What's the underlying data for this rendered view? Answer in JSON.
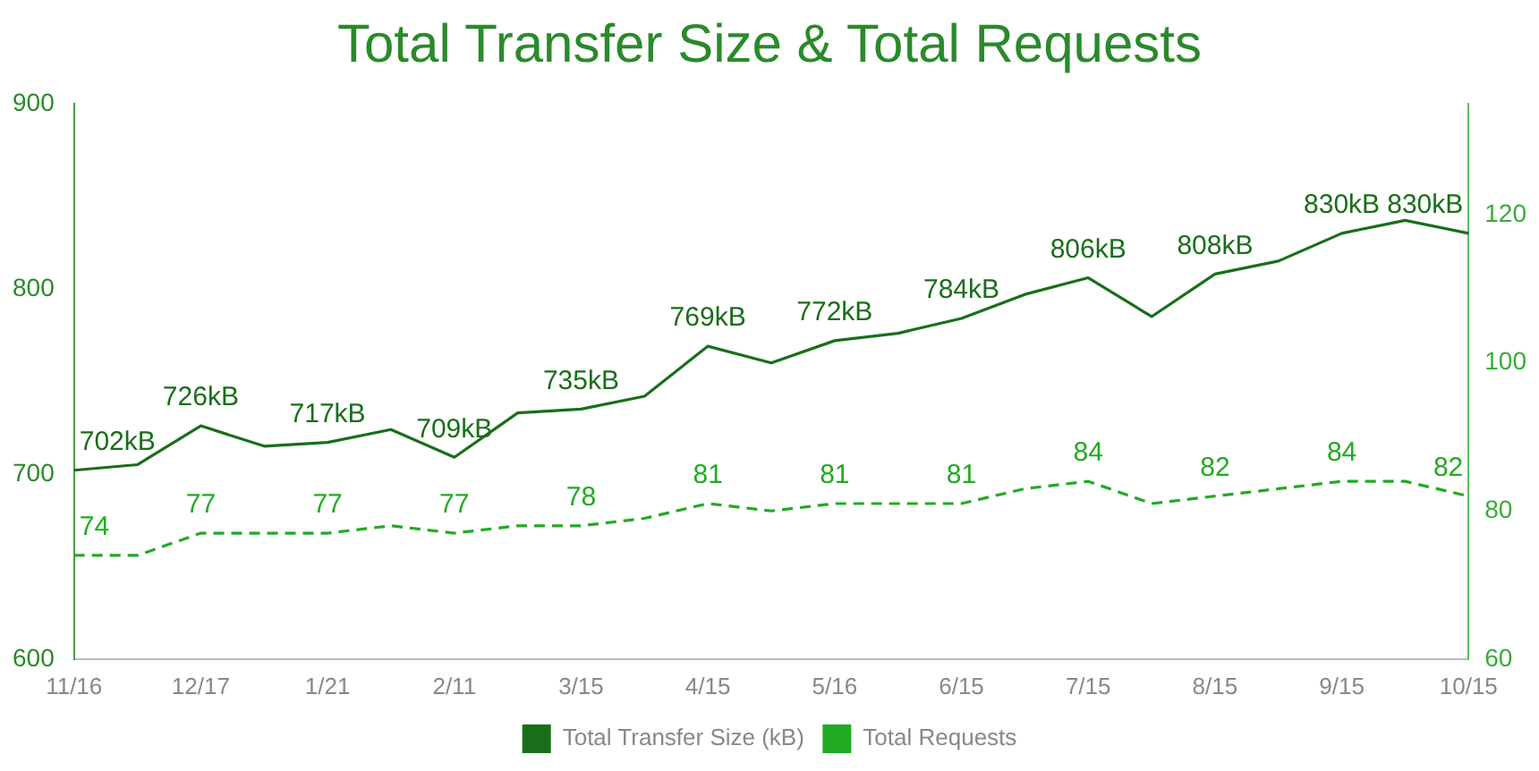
{
  "chart_data": {
    "type": "line",
    "title": "Total Transfer Size & Total Requests",
    "categories": [
      "11/16",
      null,
      "12/17",
      null,
      "1/21",
      null,
      "2/11",
      null,
      "3/15",
      null,
      "4/15",
      null,
      "5/16",
      null,
      "6/15",
      null,
      "7/15",
      null,
      "8/15",
      null,
      "9/15",
      null,
      "10/15"
    ],
    "series": [
      {
        "name": "Total Transfer Size (kB)",
        "color": "#1a6e1a",
        "line_style": "solid",
        "values": [
          702,
          705,
          726,
          715,
          717,
          724,
          709,
          733,
          735,
          742,
          769,
          760,
          772,
          776,
          784,
          797,
          806,
          785,
          808,
          815,
          830,
          837,
          830
        ],
        "value_labels": [
          "702kB",
          null,
          "726kB",
          null,
          "717kB",
          null,
          "709kB",
          null,
          "735kB",
          null,
          "769kB",
          null,
          "772kB",
          null,
          "784kB",
          null,
          "806kB",
          null,
          "808kB",
          null,
          "830kB",
          null,
          "830kB"
        ]
      },
      {
        "name": "Total Requests",
        "color": "#22aa22",
        "line_style": "dashed",
        "axis": "y2",
        "values": [
          74,
          74,
          77,
          77,
          77,
          78,
          77,
          78,
          78,
          79,
          81,
          80,
          81,
          81,
          81,
          83,
          84,
          81,
          82,
          83,
          84,
          84,
          82
        ],
        "value_labels": [
          "74",
          null,
          "77",
          null,
          "77",
          null,
          "77",
          null,
          "78",
          null,
          "81",
          null,
          "81",
          null,
          "81",
          null,
          "84",
          null,
          "82",
          null,
          "84",
          null,
          "82"
        ]
      }
    ],
    "ylim": [
      600,
      900
    ],
    "yticks": [
      600,
      700,
      800,
      900
    ],
    "y2lim": [
      60,
      135
    ],
    "y2ticks": [
      60,
      80,
      100,
      120
    ],
    "grid": false,
    "legend": "bottom",
    "marker": "none"
  }
}
